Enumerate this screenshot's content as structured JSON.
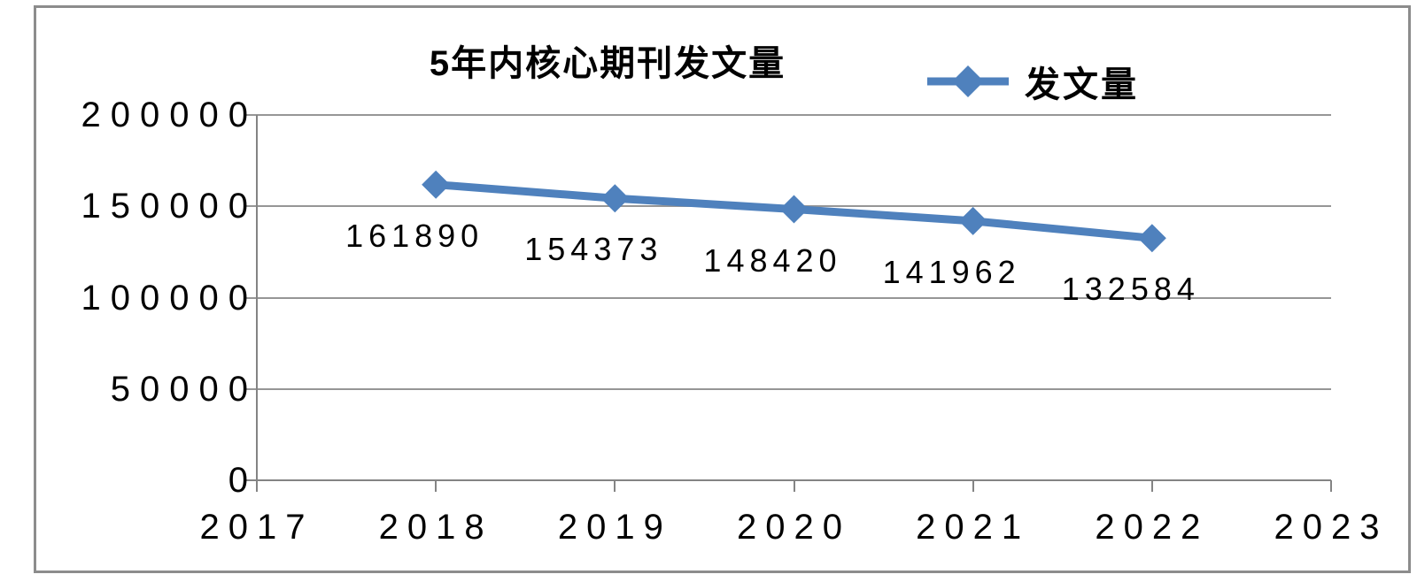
{
  "frame": {
    "background": "#ffffff",
    "border_color": "#8c8c8c"
  },
  "chart_data": {
    "type": "line",
    "title": "5年内核心期刊发文量",
    "legend": {
      "label": "发文量",
      "position": "top-right",
      "marker": "diamond-on-line"
    },
    "categories": [
      "2017",
      "2018",
      "2019",
      "2020",
      "2021",
      "2022",
      "2023"
    ],
    "series": [
      {
        "name": "发文量",
        "color": "#4F81BD",
        "marker": "diamond",
        "points": [
          {
            "x": "2018",
            "y": 161890,
            "label": "161890"
          },
          {
            "x": "2019",
            "y": 154373,
            "label": "154373"
          },
          {
            "x": "2020",
            "y": 148420,
            "label": "148420"
          },
          {
            "x": "2021",
            "y": 141962,
            "label": "141962"
          },
          {
            "x": "2022",
            "y": 132584,
            "label": "132584"
          }
        ]
      }
    ],
    "x_axis": {
      "ticks": [
        "2017",
        "2018",
        "2019",
        "2020",
        "2021",
        "2022",
        "2023"
      ]
    },
    "y_axis": {
      "min": 0,
      "max": 200000,
      "step": 50000,
      "ticks": [
        "0",
        "50000",
        "100000",
        "150000",
        "200000"
      ]
    },
    "grid": "horizontal",
    "colors": {
      "series": "#4F81BD",
      "gridline": "#969696",
      "axis": "#848484",
      "text": "#000000"
    }
  }
}
